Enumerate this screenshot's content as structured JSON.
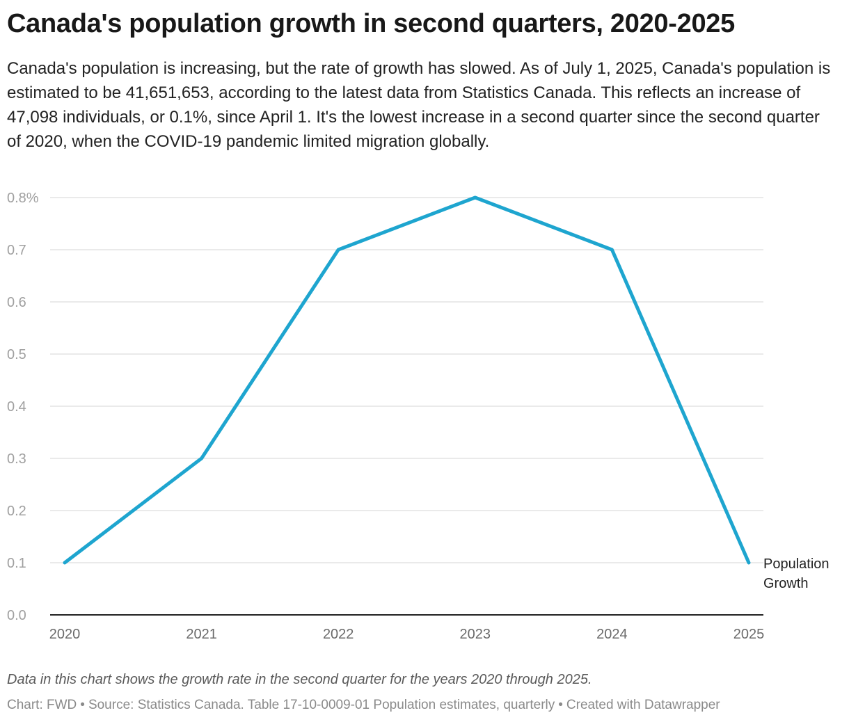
{
  "title": "Canada's population growth in second quarters, 2020-2025",
  "subtitle": "Canada's population is increasing, but the rate of growth has slowed. As of July 1, 2025, Canada's population is estimated to be 41,651,653, according to the latest data from Statistics Canada. This reflects an increase of 47,098 individuals, or 0.1%, since April 1. It's the lowest increase in a second quarter since the second quarter of 2020, when the COVID-19 pandemic limited migration globally.",
  "note": "Data in this chart shows the growth rate in the second quarter for the years 2020 through 2025.",
  "footer": {
    "chart_by": "Chart: FWD",
    "source": "Source: Statistics Canada. Table 17-10-0009-01 Population estimates, quarterly",
    "created_with": "Created with Datawrapper",
    "separator": "•"
  },
  "colors": {
    "line": "#1ea5cf",
    "grid": "#e4e4e4",
    "baseline": "#222222"
  },
  "chart_data": {
    "type": "line",
    "title": "Canada's population growth in second quarters, 2020-2025",
    "xlabel": "",
    "ylabel": "",
    "x": [
      "2020",
      "2021",
      "2022",
      "2023",
      "2024",
      "2025"
    ],
    "series": [
      {
        "name": "Population Growth",
        "label_lines": [
          "Population",
          "Growth"
        ],
        "values": [
          0.1,
          0.3,
          0.7,
          0.8,
          0.7,
          0.1
        ]
      }
    ],
    "ylim": [
      0,
      0.8
    ],
    "yticks": [
      0,
      0.1,
      0.2,
      0.3,
      0.4,
      0.5,
      0.6,
      0.7,
      0.8
    ],
    "ytick_labels": [
      "0.0",
      "0.1",
      "0.2",
      "0.3",
      "0.4",
      "0.5",
      "0.6",
      "0.7",
      "0.8%"
    ],
    "grid": true,
    "legend": "inline-label-right"
  }
}
